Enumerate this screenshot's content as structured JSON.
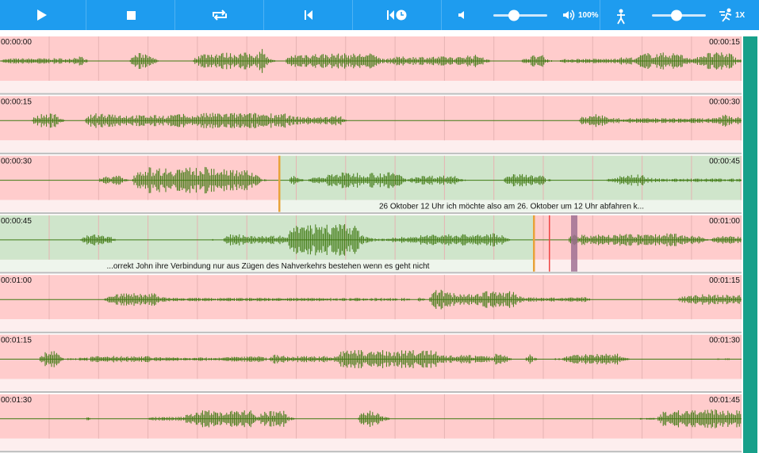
{
  "toolbar": {
    "volume_label": "100%",
    "speed_label": "1X"
  },
  "rows": [
    {
      "start": "00:00:00",
      "end": "00:00:15"
    },
    {
      "start": "00:00:15",
      "end": "00:00:30"
    },
    {
      "start": "00:00:30",
      "end": "00:00:45",
      "transcript": "26 Oktober 12 Uhr ich möchte also am 26. Oktober um 12 Uhr abfahren k..."
    },
    {
      "start": "00:00:45",
      "end": "00:01:00",
      "transcript": "...orrekt John ihre Verbindung nur aus Zügen des Nahverkehrs bestehen wenn es geht nicht"
    },
    {
      "start": "00:01:00",
      "end": "00:01:15"
    },
    {
      "start": "00:01:15",
      "end": "00:01:30"
    },
    {
      "start": "00:01:30",
      "end": "00:01:45"
    }
  ]
}
